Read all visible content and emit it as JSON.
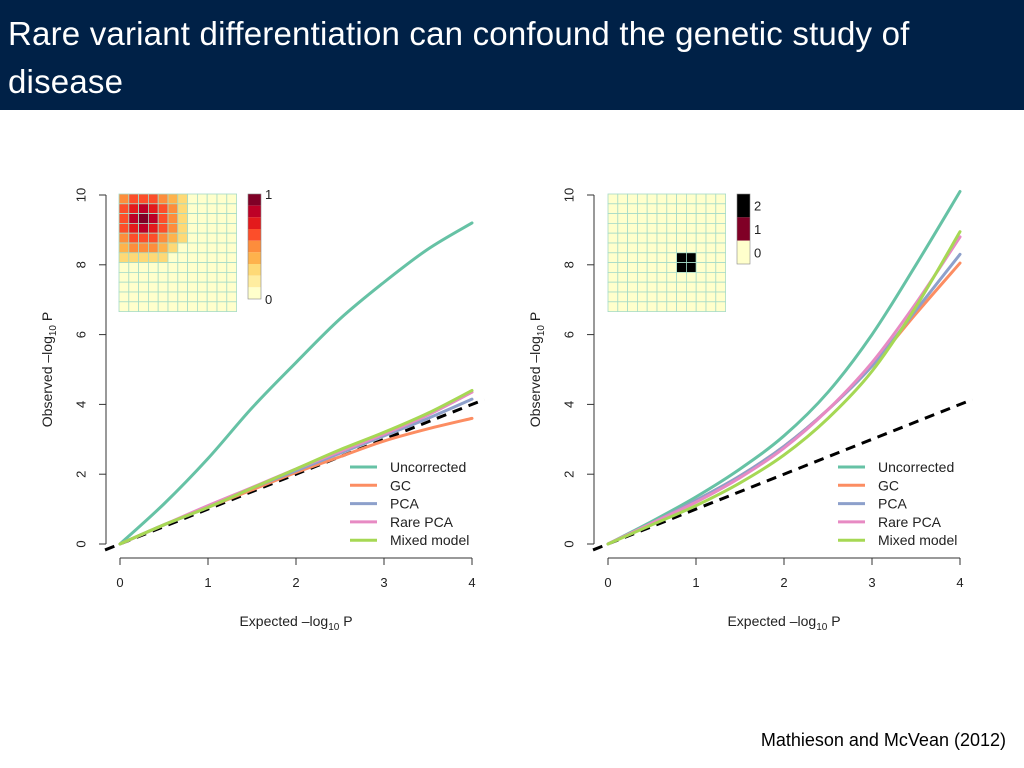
{
  "slide": {
    "title": "Rare variant differentiation can confound the genetic study of disease",
    "citation": "Mathieson and McVean (2012)"
  },
  "colors": {
    "title_bg": "#002147",
    "Uncorrected": "#66c2a5",
    "GC": "#fc8d62",
    "PCA": "#8da0cb",
    "Rare PCA": "#e78ac3",
    "Mixed model": "#a6d854",
    "null": "#000000",
    "heat_low": "#ffffcc",
    "heat_high": "#800026"
  },
  "chart_data": [
    {
      "type": "line",
      "xlabel": "Expected –log10 P",
      "ylabel": "Observed –log10 P",
      "xlim": [
        0,
        4
      ],
      "ylim": [
        0,
        10
      ],
      "xticks": [
        "0",
        "1",
        "2",
        "3",
        "4"
      ],
      "yticks": [
        "0",
        "2",
        "4",
        "6",
        "8",
        "10"
      ],
      "x": [
        0,
        0.5,
        1,
        1.5,
        2,
        2.5,
        3,
        3.5,
        4
      ],
      "legend_position": "bottom-right",
      "series": [
        {
          "name": "Uncorrected",
          "values": [
            0,
            1.15,
            2.45,
            3.9,
            5.2,
            6.45,
            7.5,
            8.45,
            9.2
          ]
        },
        {
          "name": "GC",
          "values": [
            0,
            0.55,
            1.05,
            1.55,
            2.05,
            2.5,
            2.95,
            3.3,
            3.6
          ]
        },
        {
          "name": "PCA",
          "values": [
            0,
            0.55,
            1.05,
            1.6,
            2.1,
            2.6,
            3.1,
            3.6,
            4.15
          ]
        },
        {
          "name": "Rare PCA",
          "values": [
            0,
            0.55,
            1.1,
            1.62,
            2.15,
            2.65,
            3.15,
            3.7,
            4.35
          ]
        },
        {
          "name": "Mixed model",
          "values": [
            0,
            0.55,
            1.05,
            1.6,
            2.15,
            2.7,
            3.2,
            3.75,
            4.4
          ]
        }
      ],
      "null_line": {
        "slope": 1,
        "style": "dashed"
      },
      "inset": {
        "type": "heatmap",
        "grid": [
          12,
          12
        ],
        "scale_labels": [
          "1",
          "0"
        ],
        "pattern": "radial",
        "center": [
          2,
          2
        ],
        "scale_colors": [
          "#800026",
          "#bd0026",
          "#e31a1c",
          "#fc4e2a",
          "#fd8d3c",
          "#feb24c",
          "#fed976",
          "#ffeda0",
          "#ffffcc"
        ]
      }
    },
    {
      "type": "line",
      "xlabel": "Expected –log10 P",
      "ylabel": "Observed –log10 P",
      "xlim": [
        0,
        4
      ],
      "ylim": [
        0,
        10
      ],
      "xticks": [
        "0",
        "1",
        "2",
        "3",
        "4"
      ],
      "yticks": [
        "0",
        "2",
        "4",
        "6",
        "8",
        "10"
      ],
      "x": [
        0,
        0.5,
        1,
        1.5,
        2,
        2.5,
        3,
        3.5,
        4
      ],
      "legend_position": "bottom-right",
      "series": [
        {
          "name": "Uncorrected",
          "values": [
            0,
            0.65,
            1.35,
            2.15,
            3.1,
            4.35,
            6.0,
            8.0,
            10.1
          ]
        },
        {
          "name": "GC",
          "values": [
            0,
            0.6,
            1.25,
            1.95,
            2.8,
            3.85,
            5.1,
            6.6,
            8.05
          ]
        },
        {
          "name": "PCA",
          "values": [
            0,
            0.6,
            1.25,
            1.95,
            2.8,
            3.85,
            5.1,
            6.7,
            8.3
          ]
        },
        {
          "name": "Rare PCA",
          "values": [
            0,
            0.6,
            1.2,
            1.9,
            2.75,
            3.85,
            5.2,
            6.9,
            8.8
          ]
        },
        {
          "name": "Mixed model",
          "values": [
            0,
            0.55,
            1.1,
            1.75,
            2.55,
            3.6,
            4.95,
            6.8,
            8.95
          ]
        }
      ],
      "null_line": {
        "slope": 1,
        "style": "dashed"
      },
      "inset": {
        "type": "heatmap",
        "grid": [
          12,
          12
        ],
        "scale_labels": [
          "2",
          "1",
          "0"
        ],
        "pattern": "block",
        "block": [
          6,
          7,
          7,
          8
        ],
        "scale_colors": [
          "#000000",
          "#800026",
          "#ffffcc"
        ]
      }
    }
  ]
}
